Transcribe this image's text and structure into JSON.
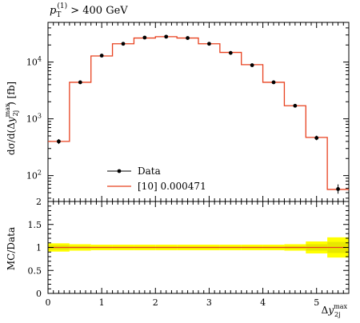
{
  "chart_data": [
    {
      "type": "line",
      "panel": "main",
      "title": "p_T^(1) > 400 GeV",
      "title_parts": {
        "p": "p",
        "sub": "T",
        "sup": "(1)",
        "rest": " > 400 GeV"
      },
      "ylabel": "dσ / d(Δy_2j^max) [fb]",
      "ylabel_parts": {
        "pre": "dσ/d(Δ",
        "y": "y",
        "sup": "max",
        "sub": "2j",
        "post": ") [fb]"
      },
      "yscale": "log",
      "ylim": [
        35,
        50000
      ],
      "xlim": [
        0,
        5.6
      ],
      "yticks": [
        {
          "value": 100,
          "base": "10",
          "exp": "2"
        },
        {
          "value": 1000,
          "base": "10",
          "exp": "3"
        },
        {
          "value": 10000,
          "base": "10",
          "exp": "4"
        }
      ],
      "legend_position": "bottom-left",
      "series": [
        {
          "name": "Data",
          "kind": "points",
          "color": "#000000",
          "x": [
            0.2,
            0.6,
            1.0,
            1.4,
            1.8,
            2.2,
            2.6,
            3.0,
            3.4,
            3.8,
            4.2,
            4.6,
            5.0,
            5.4
          ],
          "y": [
            400,
            4400,
            13000,
            21000,
            27000,
            28000,
            26500,
            21000,
            14500,
            8800,
            4400,
            1700,
            460,
            58
          ],
          "yerr_lo": [
            360,
            4350,
            12800,
            20800,
            26800,
            27800,
            26300,
            20800,
            14300,
            8650,
            4300,
            1630,
            420,
            48
          ],
          "yerr_hi": [
            440,
            4450,
            13200,
            21200,
            27200,
            28200,
            26700,
            21200,
            14700,
            8950,
            4500,
            1770,
            505,
            70
          ]
        },
        {
          "name": "[10] 0.000471",
          "kind": "histogram",
          "color": "#e8411f",
          "bin_edges": [
            0,
            0.4,
            0.8,
            1.2,
            1.6,
            2.0,
            2.4,
            2.8,
            3.2,
            3.6,
            4.0,
            4.4,
            4.8,
            5.2,
            5.6
          ],
          "values": [
            400,
            4400,
            12800,
            21000,
            26500,
            28000,
            26500,
            21000,
            14800,
            9000,
            4400,
            1700,
            470,
            57
          ]
        }
      ]
    },
    {
      "type": "line",
      "panel": "ratio",
      "xlabel": "Δy_2j^max",
      "xlabel_parts": {
        "pre": "Δ",
        "y": "y",
        "sup": "max",
        "sub": "2j"
      },
      "ylabel": "MC/Data",
      "xlim": [
        0,
        5.6
      ],
      "ylim": [
        0,
        2
      ],
      "xticks": [
        "0",
        "1",
        "2",
        "3",
        "4",
        "5"
      ],
      "yticks": [
        "0",
        "0.5",
        "1",
        "1.5",
        "2"
      ],
      "band_colors": {
        "outer": "#ffff00",
        "inner": "#e8e800"
      },
      "bin_edges": [
        0,
        0.4,
        0.8,
        1.2,
        1.6,
        2.0,
        2.4,
        2.8,
        3.2,
        3.6,
        4.0,
        4.4,
        4.8,
        5.2,
        5.6
      ],
      "band_outer_lo": [
        0.91,
        0.93,
        0.94,
        0.94,
        0.94,
        0.94,
        0.94,
        0.94,
        0.94,
        0.94,
        0.94,
        0.93,
        0.87,
        0.78
      ],
      "band_outer_hi": [
        1.09,
        1.07,
        1.06,
        1.06,
        1.06,
        1.06,
        1.06,
        1.06,
        1.06,
        1.06,
        1.06,
        1.07,
        1.13,
        1.22
      ],
      "band_inner_lo": [
        0.95,
        0.97,
        0.98,
        0.98,
        0.98,
        0.98,
        0.98,
        0.98,
        0.98,
        0.98,
        0.98,
        0.97,
        0.93,
        0.88
      ],
      "band_inner_hi": [
        1.05,
        1.03,
        1.02,
        1.02,
        1.02,
        1.02,
        1.02,
        1.02,
        1.02,
        1.02,
        1.02,
        1.03,
        1.07,
        1.12
      ],
      "ratio_values": [
        1.0,
        1.0,
        1.0,
        1.0,
        1.0,
        1.0,
        1.0,
        1.0,
        1.0,
        1.0,
        1.0,
        1.0,
        1.0,
        1.0
      ],
      "ratio_color": "#e8411f"
    }
  ]
}
